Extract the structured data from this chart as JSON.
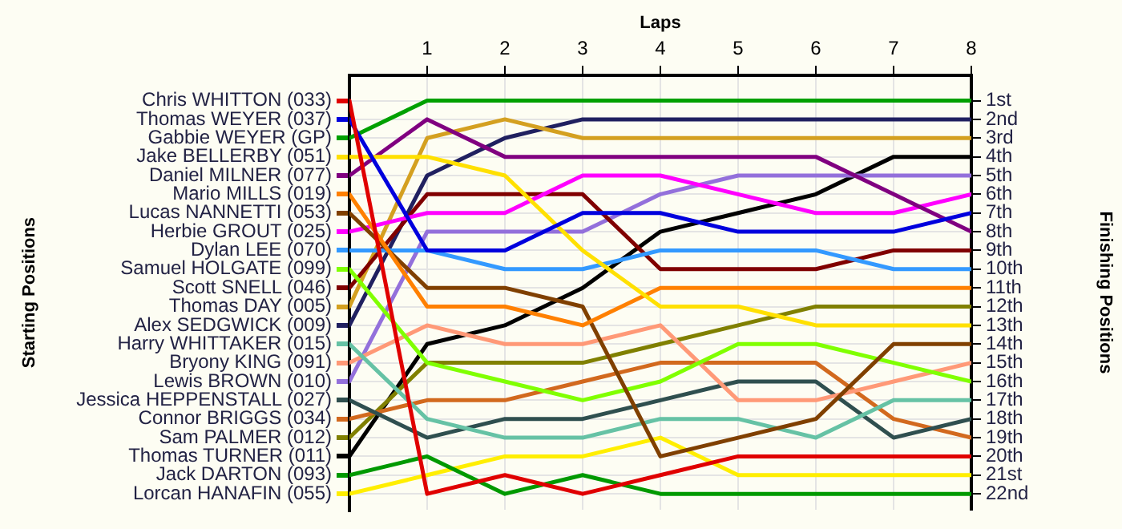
{
  "chart_data": {
    "type": "line",
    "xlabel": "Laps",
    "legend_title": "Starting Positions",
    "ylabel": "Finishing Positions",
    "x": [
      0,
      1,
      2,
      3,
      4,
      5,
      6,
      7,
      8
    ],
    "xlim": [
      0,
      8
    ],
    "xticks": [
      1,
      2,
      3,
      4,
      5,
      6,
      7,
      8
    ],
    "ylim": [
      22.85,
      -0.35
    ],
    "yticks": [
      {
        "value": 1,
        "label": "1st"
      },
      {
        "value": 2,
        "label": "2nd"
      },
      {
        "value": 3,
        "label": "3rd"
      },
      {
        "value": 4,
        "label": "4th"
      },
      {
        "value": 5,
        "label": "5th"
      },
      {
        "value": 6,
        "label": "6th"
      },
      {
        "value": 7,
        "label": "7th"
      },
      {
        "value": 8,
        "label": "8th"
      },
      {
        "value": 9,
        "label": "9th"
      },
      {
        "value": 10,
        "label": "10th"
      },
      {
        "value": 11,
        "label": "11th"
      },
      {
        "value": 12,
        "label": "12th"
      },
      {
        "value": 13,
        "label": "13th"
      },
      {
        "value": 14,
        "label": "14th"
      },
      {
        "value": 15,
        "label": "15th"
      },
      {
        "value": 16,
        "label": "16th"
      },
      {
        "value": 17,
        "label": "17th"
      },
      {
        "value": 18,
        "label": "18th"
      },
      {
        "value": 19,
        "label": "19th"
      },
      {
        "value": 20,
        "label": "20th"
      },
      {
        "value": 21,
        "label": "21st"
      },
      {
        "value": 22,
        "label": "22nd"
      }
    ],
    "grid": true,
    "legend": "left",
    "marker": "none",
    "line_style": "solid",
    "series": [
      {
        "name": "Chris WHITTON (033)",
        "color": "#e00000",
        "values": [
          1,
          22,
          21,
          22,
          21,
          20,
          20,
          20,
          20
        ]
      },
      {
        "name": "Thomas WEYER (037)",
        "color": "#0000dd",
        "values": [
          2,
          9,
          9,
          7,
          7,
          8,
          8,
          8,
          7
        ]
      },
      {
        "name": "Gabbie WEYER (GP)",
        "color": "#00a000",
        "values": [
          3,
          1,
          1,
          1,
          1,
          1,
          1,
          1,
          1
        ]
      },
      {
        "name": "Jake BELLERBY (051)",
        "color": "#ffe000",
        "values": [
          4,
          4,
          5,
          9,
          12,
          12,
          13,
          13,
          13
        ]
      },
      {
        "name": "Daniel MILNER (077)",
        "color": "#800080",
        "values": [
          5,
          2,
          4,
          4,
          4,
          4,
          4,
          6,
          8
        ]
      },
      {
        "name": "Mario MILLS (019)",
        "color": "#ff8000",
        "values": [
          6,
          12,
          12,
          13,
          11,
          11,
          11,
          11,
          11
        ]
      },
      {
        "name": "Lucas NANNETTI (053)",
        "color": "#804000",
        "values": [
          7,
          11,
          11,
          12,
          20,
          19,
          18,
          14,
          14
        ]
      },
      {
        "name": "Herbie GROUT (025)",
        "color": "#ff00ff",
        "values": [
          8,
          7,
          7,
          5,
          5,
          6,
          7,
          7,
          6
        ]
      },
      {
        "name": "Dylan LEE (070)",
        "color": "#3399ff",
        "values": [
          9,
          9,
          10,
          10,
          9,
          9,
          9,
          10,
          10
        ]
      },
      {
        "name": "Samuel HOLGATE (099)",
        "color": "#80ff00",
        "values": [
          10,
          15,
          16,
          17,
          16,
          14,
          14,
          15,
          16
        ]
      },
      {
        "name": "Scott SNELL (046)",
        "color": "#800000",
        "values": [
          11,
          6,
          6,
          6,
          10,
          10,
          10,
          9,
          9
        ]
      },
      {
        "name": "Thomas DAY (005)",
        "color": "#d4a020",
        "values": [
          12,
          3,
          2,
          3,
          3,
          3,
          3,
          3,
          3
        ]
      },
      {
        "name": "Alex SEDGWICK (009)",
        "color": "#202060",
        "values": [
          13,
          5,
          3,
          2,
          2,
          2,
          2,
          2,
          2
        ]
      },
      {
        "name": "Harry WHITTAKER (015)",
        "color": "#66c2a5",
        "values": [
          14,
          18,
          19,
          19,
          18,
          18,
          19,
          17,
          17
        ]
      },
      {
        "name": "Bryony KING (091)",
        "color": "#ff9977",
        "values": [
          15,
          13,
          14,
          14,
          13,
          17,
          17,
          16,
          15
        ]
      },
      {
        "name": "Lewis BROWN (010)",
        "color": "#9370db",
        "values": [
          16,
          8,
          8,
          8,
          6,
          5,
          5,
          5,
          5
        ]
      },
      {
        "name": "Jessica HEPPENSTALL (027)",
        "color": "#2f4f4f",
        "values": [
          17,
          19,
          18,
          18,
          17,
          16,
          16,
          19,
          18
        ]
      },
      {
        "name": "Connor BRIGGS (034)",
        "color": "#d2691e",
        "values": [
          18,
          17,
          17,
          16,
          15,
          15,
          15,
          18,
          19
        ]
      },
      {
        "name": "Sam PALMER (012)",
        "color": "#808000",
        "values": [
          19,
          15,
          15,
          15,
          14,
          13,
          12,
          12,
          12
        ]
      },
      {
        "name": "Thomas TURNER (011)",
        "color": "#000000",
        "values": [
          20,
          14,
          13,
          11,
          8,
          7,
          6,
          4,
          4
        ]
      },
      {
        "name": "Jack DARTON (093)",
        "color": "#009900",
        "values": [
          21,
          20,
          22,
          21,
          22,
          22,
          22,
          22,
          22
        ]
      },
      {
        "name": "Lorcan HANAFIN (055)",
        "color": "#ffee00",
        "values": [
          22,
          21,
          20,
          20,
          19,
          21,
          21,
          21,
          21
        ]
      }
    ]
  }
}
